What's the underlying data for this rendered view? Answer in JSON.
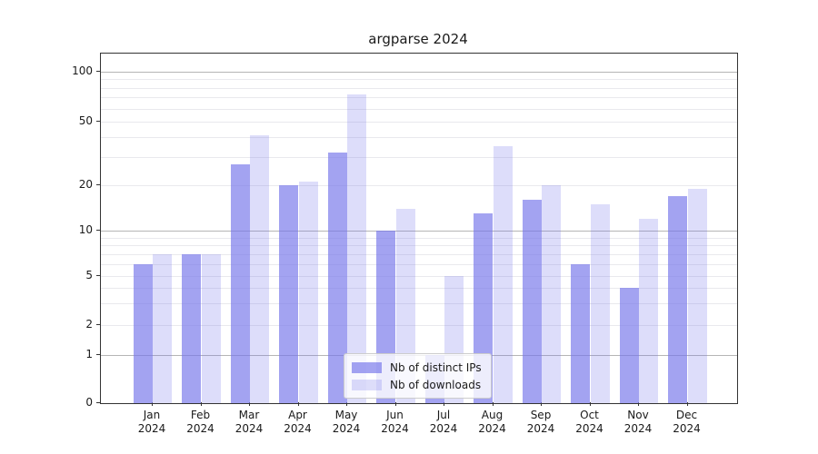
{
  "title": "argparse 2024",
  "legend": {
    "position": "lower center",
    "entries": [
      {
        "label": "Nb of distinct IPs"
      },
      {
        "label": "Nb of downloads"
      }
    ]
  },
  "chart_data": {
    "type": "bar",
    "title": "argparse 2024",
    "categories": [
      "Jan 2024",
      "Feb 2024",
      "Mar 2024",
      "Apr 2024",
      "May 2024",
      "Jun 2024",
      "Jul 2024",
      "Aug 2024",
      "Sep 2024",
      "Oct 2024",
      "Nov 2024",
      "Dec 2024"
    ],
    "series": [
      {
        "name": "Nb of distinct IPs",
        "color": "rgba(120,120,235,0.68)",
        "values": [
          6,
          7,
          27,
          20,
          32,
          10,
          1,
          13,
          16,
          6,
          4,
          17
        ]
      },
      {
        "name": "Nb of downloads",
        "color": "rgba(120,120,235,0.25)",
        "values": [
          7,
          7,
          41,
          21,
          73,
          14,
          5,
          35,
          20,
          15,
          12,
          19
        ]
      }
    ],
    "xlabel": "",
    "ylabel": "",
    "yscale": "symlog",
    "ylim": [
      0,
      130
    ],
    "yticks": [
      0,
      1,
      2,
      5,
      10,
      20,
      50,
      100
    ],
    "ytick_labels": [
      "0",
      "1",
      "2",
      "5",
      "10",
      "20",
      "50",
      "100"
    ],
    "grid": true,
    "grid_major_values": [
      1,
      10,
      100
    ],
    "grid_minor_values": [
      2,
      3,
      4,
      5,
      6,
      7,
      8,
      9,
      20,
      30,
      40,
      50,
      60,
      70,
      80,
      90
    ],
    "colors": {
      "background": "#ffffff",
      "axis": "#333333",
      "grid_major": "#b5b5b5",
      "grid_minor": "#e9e9ed",
      "text": "#1a1a1a"
    },
    "legend_position": "lower center"
  }
}
